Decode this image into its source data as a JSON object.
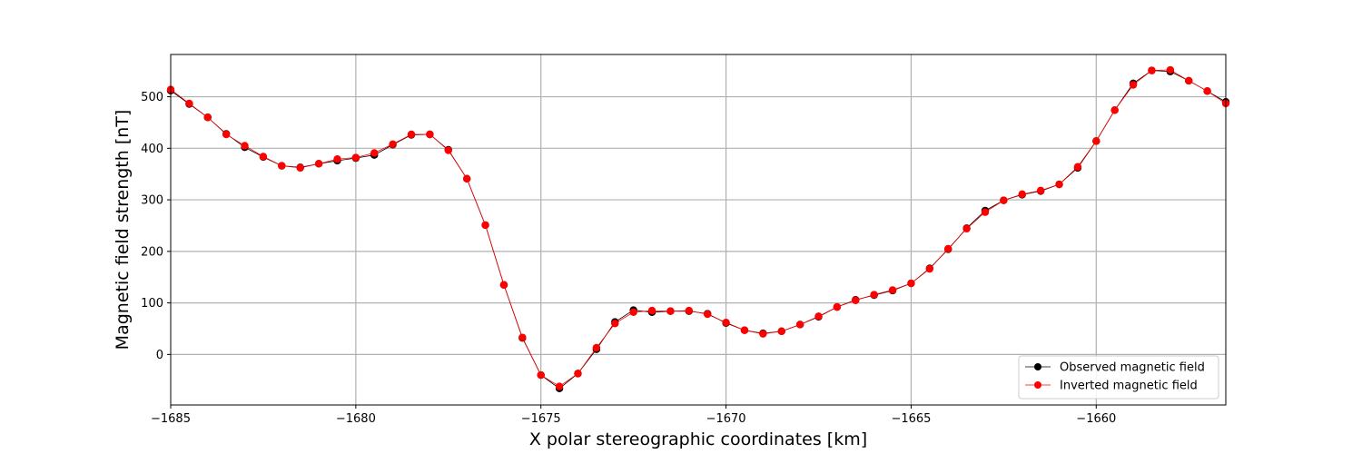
{
  "chart_data": {
    "type": "line",
    "xlabel": "X polar stereographic coordinates [km]",
    "ylabel": "Magnetic field strength [nT]",
    "xlim": [
      -1685,
      -1656.5
    ],
    "ylim": [
      -98,
      582
    ],
    "xticks": [
      -1685,
      -1680,
      -1675,
      -1670,
      -1665,
      -1660
    ],
    "xtick_labels": [
      "−1685",
      "−1680",
      "−1675",
      "−1670",
      "−1665",
      "−1660"
    ],
    "yticks": [
      0,
      100,
      200,
      300,
      400,
      500
    ],
    "ytick_labels": [
      "0",
      "100",
      "200",
      "300",
      "400",
      "500"
    ],
    "grid": true,
    "legend_position": "lower-right",
    "x": [
      -1685,
      -1684.5,
      -1684,
      -1683.5,
      -1683,
      -1682.5,
      -1682,
      -1681.5,
      -1681,
      -1680.5,
      -1680,
      -1679.5,
      -1679,
      -1678.5,
      -1678,
      -1677.5,
      -1677,
      -1676.5,
      -1676,
      -1675.5,
      -1675,
      -1674.5,
      -1674,
      -1673.5,
      -1673,
      -1672.5,
      -1672,
      -1671.5,
      -1671,
      -1670.5,
      -1670,
      -1669.5,
      -1669,
      -1668.5,
      -1668,
      -1667.5,
      -1667,
      -1666.5,
      -1666,
      -1665.5,
      -1665,
      -1664.5,
      -1664,
      -1663.5,
      -1663,
      -1662.5,
      -1662,
      -1661.5,
      -1661,
      -1660.5,
      -1660,
      -1659.5,
      -1659,
      -1658.5,
      -1658,
      -1657.5,
      -1657,
      -1656.5
    ],
    "series": [
      {
        "name": "Observed magnetic field",
        "color": "#000000",
        "values": [
          512,
          486,
          460,
          428,
          402,
          383,
          366,
          363,
          370,
          376,
          381,
          387,
          407,
          426,
          427,
          397,
          341,
          251,
          135,
          32,
          -40,
          -66,
          -37,
          10,
          63,
          86,
          82,
          84,
          84,
          79,
          61,
          47,
          41,
          45,
          58,
          73,
          92,
          106,
          115,
          124,
          138,
          167,
          204,
          245,
          279,
          299,
          310,
          317,
          330,
          362,
          414,
          474,
          526,
          551,
          549,
          531,
          511,
          490
        ]
      },
      {
        "name": "Inverted magnetic field",
        "color": "#ff0000",
        "values": [
          514,
          487,
          460,
          427,
          405,
          384,
          366,
          362,
          370,
          379,
          382,
          391,
          408,
          427,
          427,
          396,
          341,
          251,
          135,
          33,
          -40,
          -62,
          -37,
          13,
          60,
          82,
          85,
          84,
          85,
          78,
          62,
          47,
          40,
          45,
          58,
          74,
          92,
          105,
          116,
          125,
          138,
          166,
          205,
          244,
          276,
          299,
          311,
          318,
          330,
          364,
          414,
          474,
          523,
          551,
          552,
          531,
          511,
          487
        ]
      }
    ]
  }
}
